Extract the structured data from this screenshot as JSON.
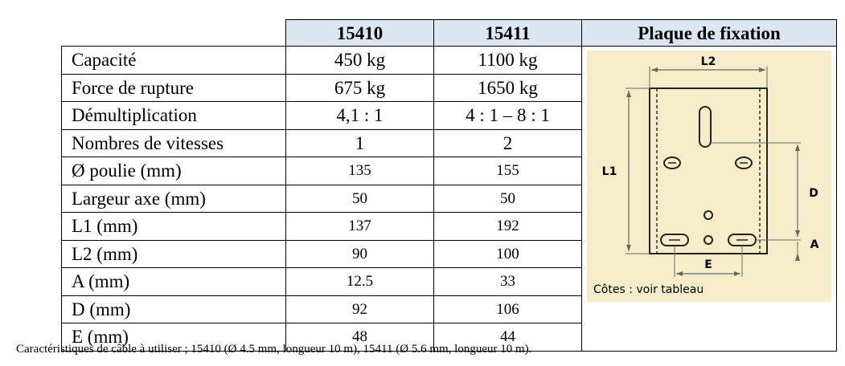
{
  "header": {
    "col1": "15410",
    "col2": "15411",
    "col3": "Plaque de fixation"
  },
  "rows": [
    {
      "label": "Capacité",
      "v1": "450 kg",
      "v2": "1100 kg"
    },
    {
      "label": "Force de rupture",
      "v1": "675 kg",
      "v2": "1650 kg"
    },
    {
      "label": "Démultiplication",
      "v1": "4,1 : 1",
      "v2": "4 : 1 – 8 : 1"
    },
    {
      "label": "Nombres de vitesses",
      "v1": "1",
      "v2": "2"
    },
    {
      "label": "Ø poulie (mm)",
      "v1": "135",
      "v2": "155"
    },
    {
      "label": "Largeur axe (mm)",
      "v1": "50",
      "v2": "50"
    },
    {
      "label": "L1 (mm)",
      "v1": "137",
      "v2": "192"
    },
    {
      "label": "L2 (mm)",
      "v1": "90",
      "v2": "100"
    },
    {
      "label": "A (mm)",
      "v1": "12.5",
      "v2": "33"
    },
    {
      "label": "D (mm)",
      "v1": "92",
      "v2": "106"
    },
    {
      "label": "E (mm)",
      "v1": "48",
      "v2": "44"
    }
  ],
  "plate": {
    "label_l2": "L2",
    "label_l1": "L1",
    "label_d": "D",
    "label_a": "A",
    "label_e": "E",
    "caption": "Côtes : voir tableau",
    "bg_color": "#f7ecc9"
  },
  "footnote": "Caractéristiques de câble à utiliser ; 15410 (Ø 4.5 mm, longueur 10 m), 15411 (Ø 5.6 mm, longueur 10 m)."
}
